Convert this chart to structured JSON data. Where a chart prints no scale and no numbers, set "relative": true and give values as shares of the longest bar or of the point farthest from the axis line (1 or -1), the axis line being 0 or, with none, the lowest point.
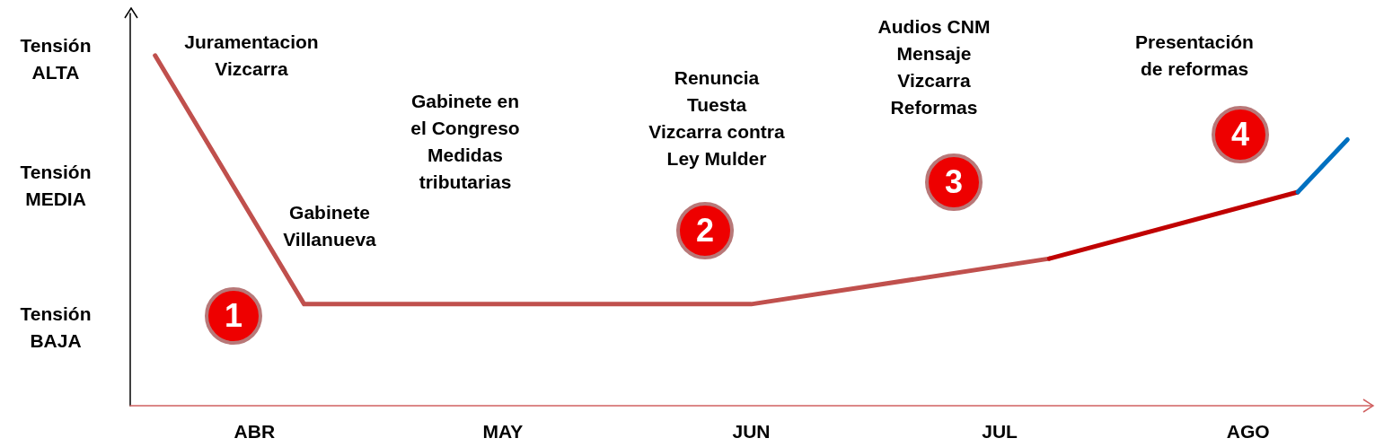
{
  "chart_data": {
    "type": "line",
    "relative": true,
    "categories": [
      null,
      null,
      "ABR",
      null,
      null,
      null,
      null,
      "MAY",
      null,
      null,
      null,
      null,
      "JUN",
      null,
      null,
      null,
      null,
      "JUL",
      null,
      null,
      null,
      null,
      "AGO",
      null,
      null
    ],
    "series": [
      {
        "color": "#c0504d",
        "values": [
          1.0,
          null,
          null,
          0.29,
          null,
          null,
          null,
          null,
          null,
          null,
          null,
          null,
          0.29,
          null,
          null,
          null,
          null,
          null,
          0.42,
          null,
          null,
          null,
          null,
          null,
          null
        ]
      },
      {
        "color": "#c00000",
        "values": [
          null,
          null,
          null,
          null,
          null,
          null,
          null,
          null,
          null,
          null,
          null,
          null,
          null,
          null,
          null,
          null,
          null,
          null,
          0.42,
          null,
          null,
          null,
          null,
          0.61,
          null
        ]
      },
      {
        "color": "#0070c0",
        "values": [
          null,
          null,
          null,
          null,
          null,
          null,
          null,
          null,
          null,
          null,
          null,
          null,
          null,
          null,
          null,
          null,
          null,
          null,
          null,
          null,
          null,
          null,
          null,
          0.61,
          0.76
        ]
      }
    ],
    "annotations": [
      "Juramentacion\nVizcarra",
      "Gabinete\nVillanueva",
      "Gabinete en\nel Congreso\nMedidas\ntributarias",
      "Renuncia\nTuesta\nVizcarra contra\nLey Mulder",
      "Audios CNM\nMensaje\nVizcarra\nReformas",
      "Presentación\nde reformas",
      "Tensión\nALTA",
      "Tensión\nMEDIA",
      "Tensión\nBAJA",
      "1",
      "2",
      "3",
      "4"
    ]
  }
}
